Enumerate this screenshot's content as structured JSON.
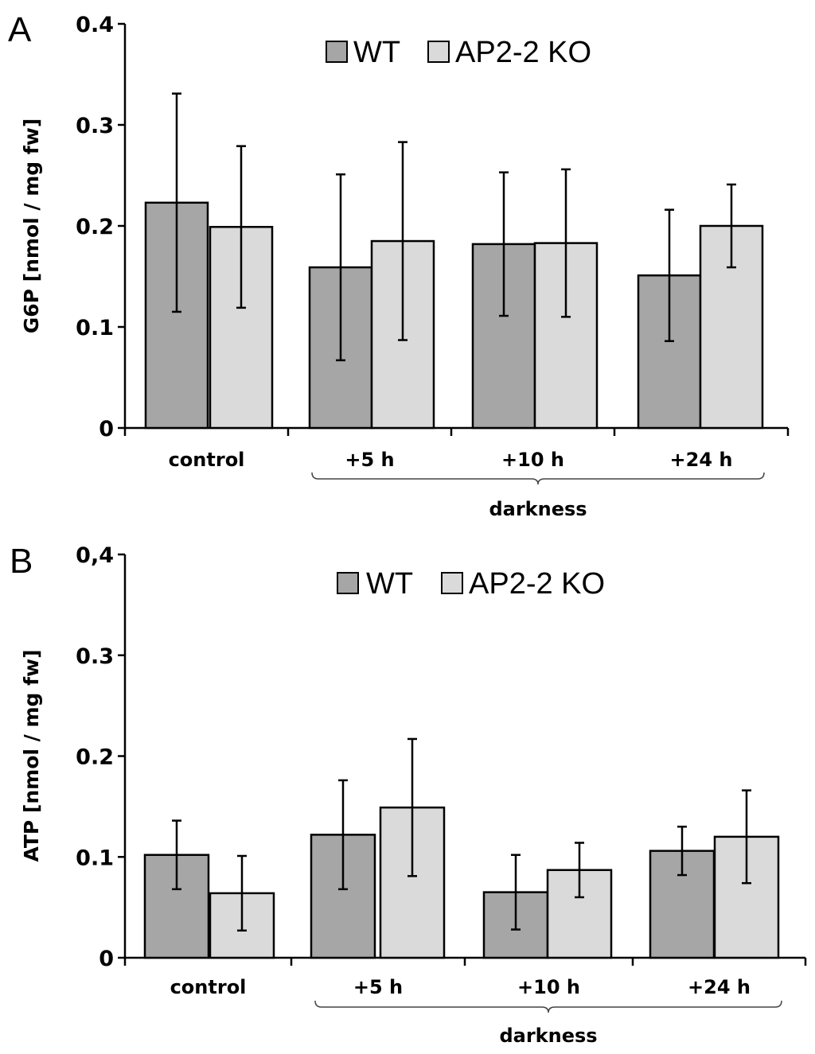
{
  "chart_data": [
    {
      "panel": "A",
      "type": "bar",
      "ylabel": "G6P [nmol / mg fw]",
      "ylim": [
        0,
        0.4
      ],
      "ytick_labels": [
        "0",
        "0.1",
        "0.2",
        "0.3",
        "0.4"
      ],
      "yticks": [
        0,
        0.1,
        0.2,
        0.3,
        0.4
      ],
      "categories": [
        "control",
        "+5 h",
        "+10 h",
        "+24 h"
      ],
      "group_label": "darkness",
      "group_spans": [
        "+5 h",
        "+24 h"
      ],
      "legend": "top-center",
      "series": [
        {
          "name": "WT",
          "color": "#a6a6a6",
          "values": [
            0.223,
            0.159,
            0.182,
            0.151
          ],
          "errors": [
            0.108,
            0.092,
            0.071,
            0.065
          ]
        },
        {
          "name": "AP2-2 KO",
          "color": "#dadada",
          "values": [
            0.199,
            0.185,
            0.183,
            0.2
          ],
          "errors": [
            0.08,
            0.098,
            0.073,
            0.041
          ]
        }
      ]
    },
    {
      "panel": "B",
      "type": "bar",
      "ylabel": "ATP [nmol / mg fw]",
      "ylim": [
        0,
        0.4
      ],
      "ytick_labels": [
        "0",
        "0.1",
        "0.2",
        "0.3",
        "0,4"
      ],
      "yticks": [
        0,
        0.1,
        0.2,
        0.3,
        0.4
      ],
      "categories": [
        "control",
        "+5 h",
        "+10 h",
        "+24 h"
      ],
      "group_label": "darkness",
      "group_spans": [
        "+5 h",
        "+24 h"
      ],
      "legend": "top-center",
      "series": [
        {
          "name": "WT",
          "color": "#a6a6a6",
          "values": [
            0.102,
            0.122,
            0.065,
            0.106
          ],
          "errors": [
            0.034,
            0.054,
            0.037,
            0.024
          ]
        },
        {
          "name": "AP2-2 KO",
          "color": "#dadada",
          "values": [
            0.064,
            0.149,
            0.087,
            0.12
          ],
          "errors": [
            0.037,
            0.068,
            0.027,
            0.046
          ]
        }
      ]
    }
  ]
}
